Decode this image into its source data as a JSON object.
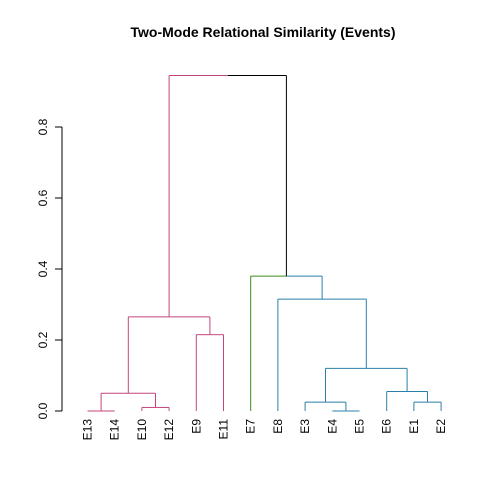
{
  "chart_data": {
    "type": "dendrogram",
    "title": "Two-Mode Relational Similarity (Events)",
    "xlabel": "",
    "ylabel": "",
    "ylim": [
      0,
      0.95
    ],
    "yticks": [
      "0.0",
      "0.2",
      "0.4",
      "0.6",
      "0.8"
    ],
    "ytick_values": [
      0.0,
      0.2,
      0.4,
      0.6,
      0.8
    ],
    "grid": false,
    "colors": {
      "pink": "#c4457e",
      "green": "#3a8a1a",
      "blue": "#2a7fa8",
      "root": "#000000"
    },
    "leaves": [
      "E13",
      "E14",
      "E10",
      "E12",
      "E9",
      "E11",
      "E7",
      "E8",
      "E3",
      "E4",
      "E5",
      "E6",
      "E1",
      "E2"
    ],
    "merges": [
      {
        "left": "E13",
        "right": "E14",
        "height": 0.0,
        "color": "pink"
      },
      {
        "left": "E10",
        "right": "E12",
        "height": 0.01,
        "color": "pink"
      },
      {
        "left": "E13-E14",
        "right": "E10-E12",
        "height": 0.05,
        "color": "pink"
      },
      {
        "left": "E9",
        "right": "E11",
        "height": 0.215,
        "color": "pink"
      },
      {
        "left": "E13-E14-E10-E12",
        "right": "E9-E11",
        "height": 0.265,
        "color": "pink"
      },
      {
        "left": "E4",
        "right": "E5",
        "height": 0.0,
        "color": "blue"
      },
      {
        "left": "E3",
        "right": "E4-E5",
        "height": 0.025,
        "color": "blue"
      },
      {
        "left": "E1",
        "right": "E2",
        "height": 0.025,
        "color": "blue"
      },
      {
        "left": "E6",
        "right": "E1-E2",
        "height": 0.055,
        "color": "blue"
      },
      {
        "left": "E3-E4-E5",
        "right": "E6-E1-E2",
        "height": 0.12,
        "color": "blue"
      },
      {
        "left": "E8",
        "right": "E3-E4-E5-E6-E1-E2",
        "height": 0.315,
        "color": "blue"
      },
      {
        "left": "E7",
        "right": "E8-...",
        "height": 0.38,
        "color": "mixed"
      },
      {
        "left": "pink-cluster",
        "right": "E7-E8-...",
        "height": 0.945,
        "color": "mixed"
      }
    ]
  }
}
